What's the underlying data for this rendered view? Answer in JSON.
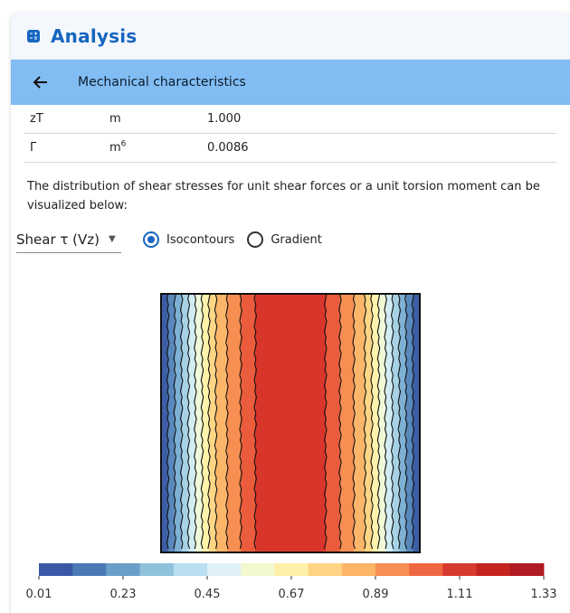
{
  "header": {
    "title": "Analysis",
    "icon": "calculator-icon"
  },
  "subbar": {
    "back_icon": "arrow-left-icon",
    "title": "Mechanical characteristics"
  },
  "rows": [
    {
      "symbol": "zT",
      "unit": "m",
      "unit_sup": "",
      "value": "1.000"
    },
    {
      "symbol": "Γ",
      "unit": "m",
      "unit_sup": "6",
      "value": "0.0086"
    }
  ],
  "description": "The distribution of shear stresses for unit shear forces or a unit torsion moment can be visualized below:",
  "controls": {
    "select_value": "Shear τ (Vz)",
    "radio_isocontours": "Isocontours",
    "radio_gradient": "Gradient",
    "selected": "isocontours"
  },
  "colorbar": {
    "colors": [
      "#3a58a6",
      "#4a79b5",
      "#6a9fc9",
      "#8fc1dc",
      "#b8def0",
      "#dff0f6",
      "#f3f9cf",
      "#fff0a8",
      "#fed384",
      "#fcb466",
      "#f98e52",
      "#ee6642",
      "#d73a2e",
      "#c4231f",
      "#b01a21"
    ],
    "ticks": [
      "0.01",
      "0.23",
      "0.45",
      "0.67",
      "0.89",
      "1.11",
      "1.33"
    ]
  },
  "plot": {
    "band_colors": [
      "#3d5ea6",
      "#5988bd",
      "#7eb1d4",
      "#a7d2e6",
      "#d2ecf4",
      "#f0f9d8",
      "#fff3ac",
      "#fed786",
      "#fcb669",
      "#f88f52",
      "#ea5c3c",
      "#d8352b",
      "#ea5c3c",
      "#f88f52",
      "#fcb669",
      "#fed786",
      "#fff3ac",
      "#f0f9d8",
      "#d2ecf4",
      "#a7d2e6",
      "#7eb1d4",
      "#5988bd",
      "#3d5ea6"
    ]
  }
}
